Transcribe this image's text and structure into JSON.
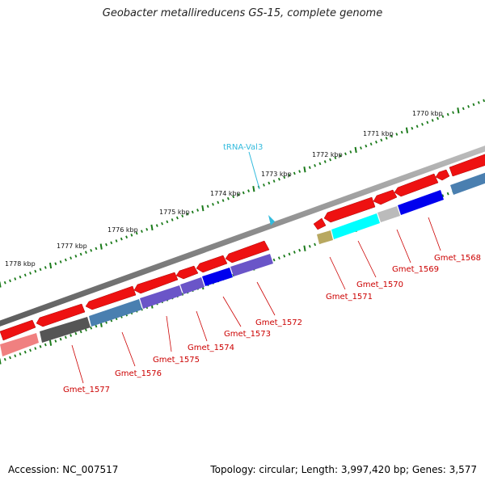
{
  "title": "Geobacter metallireducens GS-15, complete genome",
  "footer": {
    "accession": "Accession: NC_007517",
    "summary": "Topology: circular; Length: 3,997,420 bp; Genes: 3,577"
  },
  "ticks": [
    "1770 kbp",
    "1771 kbp",
    "1772 kbp",
    "1773 kbp",
    "1774 kbp",
    "1775 kbp",
    "1776 kbp",
    "1777 kbp",
    "1778 kbp"
  ],
  "trna": "tRNA-Val3",
  "genes": [
    "Gmet_1568",
    "Gmet_1569",
    "Gmet_1570",
    "Gmet_1571",
    "Gmet_1572",
    "Gmet_1573",
    "Gmet_1574",
    "Gmet_1575",
    "Gmet_1576",
    "Gmet_1577"
  ],
  "colors": {
    "forward": "#ee1111",
    "backbone": "#888888",
    "tick": "#1a7a1a",
    "cyan": "#00ffff",
    "blue": "#0000ee",
    "purple": "#6a55c8",
    "steel": "#4a7fb0",
    "gray": "#555555",
    "light_gray": "#bbbbbb",
    "olive": "#b8a860",
    "pink": "#f08080",
    "trna": "#33bbdd",
    "label": "#cc0000"
  }
}
